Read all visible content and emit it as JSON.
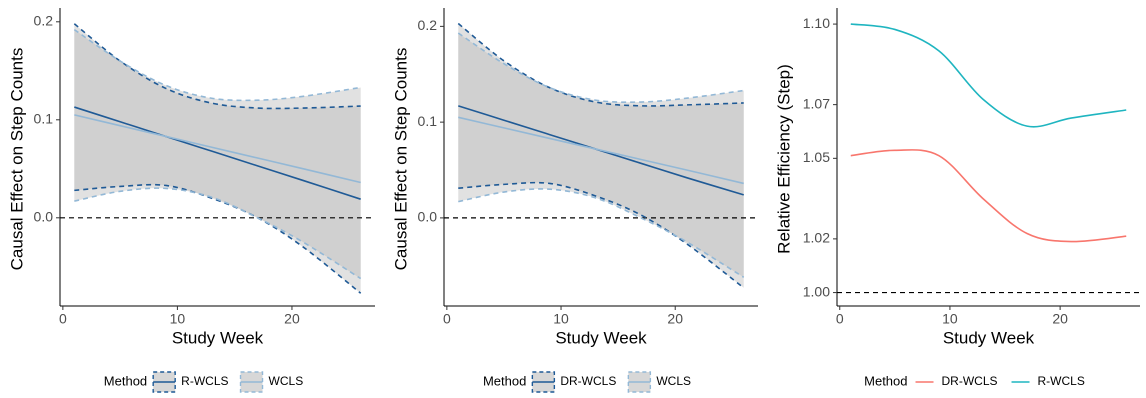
{
  "chart_data": [
    {
      "type": "line",
      "xlabel": "Study Week",
      "ylabel": "Causal Effect on Step Counts",
      "legend_title": "Method",
      "x": [
        1,
        5,
        9,
        13,
        17,
        21,
        26
      ],
      "xlim": [
        -0.25,
        27.25
      ],
      "xticks": [
        0,
        10,
        20
      ],
      "ylim": [
        -0.09,
        0.21
      ],
      "yticks": [
        {
          "value": 0,
          "label": "0.0"
        },
        0.1,
        0.2
      ],
      "hline": 0,
      "ribbon_color": "#bdbdbd",
      "series": [
        {
          "name": "R-WCLS",
          "color": "#1f5a96",
          "values": [
            0.113,
            0.098,
            0.083,
            0.068,
            0.053,
            0.038,
            0.019
          ],
          "upper": [
            0.198,
            0.16,
            0.132,
            0.117,
            0.112,
            0.112,
            0.114
          ],
          "lower": [
            0.028,
            0.032,
            0.033,
            0.02,
            0.0,
            -0.03,
            -0.077
          ]
        },
        {
          "name": "WCLS",
          "color": "#93b8d6",
          "values": [
            0.105,
            0.094,
            0.083,
            0.072,
            0.061,
            0.05,
            0.036
          ],
          "upper": [
            0.192,
            0.16,
            0.135,
            0.122,
            0.12,
            0.124,
            0.133
          ],
          "lower": [
            0.017,
            0.027,
            0.03,
            0.021,
            0.0,
            -0.025,
            -0.062
          ]
        }
      ]
    },
    {
      "type": "line",
      "xlabel": "Study Week",
      "ylabel": "Causal Effect on Step Counts",
      "legend_title": "Method",
      "x": [
        1,
        5,
        9,
        13,
        17,
        21,
        26
      ],
      "xlim": [
        -0.25,
        27.25
      ],
      "xticks": [
        0,
        10,
        20
      ],
      "ylim": [
        -0.092,
        0.215
      ],
      "yticks": [
        {
          "value": 0,
          "label": "0.0"
        },
        0.1,
        0.2
      ],
      "hline": 0,
      "ribbon_color": "#bdbdbd",
      "series": [
        {
          "name": "DR-WCLS",
          "color": "#1f5a96",
          "values": [
            0.117,
            0.102,
            0.087,
            0.072,
            0.057,
            0.042,
            0.024
          ],
          "upper": [
            0.203,
            0.164,
            0.136,
            0.121,
            0.117,
            0.118,
            0.12
          ],
          "lower": [
            0.031,
            0.035,
            0.036,
            0.023,
            0.003,
            -0.027,
            -0.073
          ]
        },
        {
          "name": "WCLS",
          "color": "#93b8d6",
          "values": [
            0.105,
            0.094,
            0.083,
            0.072,
            0.061,
            0.05,
            0.036
          ],
          "upper": [
            0.193,
            0.161,
            0.136,
            0.123,
            0.121,
            0.125,
            0.133
          ],
          "lower": [
            0.017,
            0.027,
            0.03,
            0.021,
            0.0,
            -0.025,
            -0.062
          ]
        }
      ]
    },
    {
      "type": "line",
      "xlabel": "Study Week",
      "ylabel": "Relative Efficiency (Step)",
      "legend_title": "Method",
      "x": [
        1,
        5,
        9,
        13,
        17,
        21,
        26
      ],
      "xlim": [
        -0.25,
        27.25
      ],
      "xticks": [
        0,
        10,
        20
      ],
      "ylim": [
        0.995,
        1.1045
      ],
      "yticks": [
        {
          "value": 1.0,
          "label": "1.00"
        },
        1.02,
        1.05,
        1.07,
        {
          "value": 1.1,
          "label": "1.10"
        }
      ],
      "hline": 1.0,
      "series": [
        {
          "name": "DR-WCLS",
          "color": "#f8766d",
          "values": [
            1.051,
            1.053,
            1.051,
            1.035,
            1.022,
            1.019,
            1.021
          ]
        },
        {
          "name": "R-WCLS",
          "color": "#1fb5c0",
          "values": [
            1.1,
            1.098,
            1.09,
            1.072,
            1.062,
            1.065,
            1.068
          ]
        }
      ]
    }
  ]
}
